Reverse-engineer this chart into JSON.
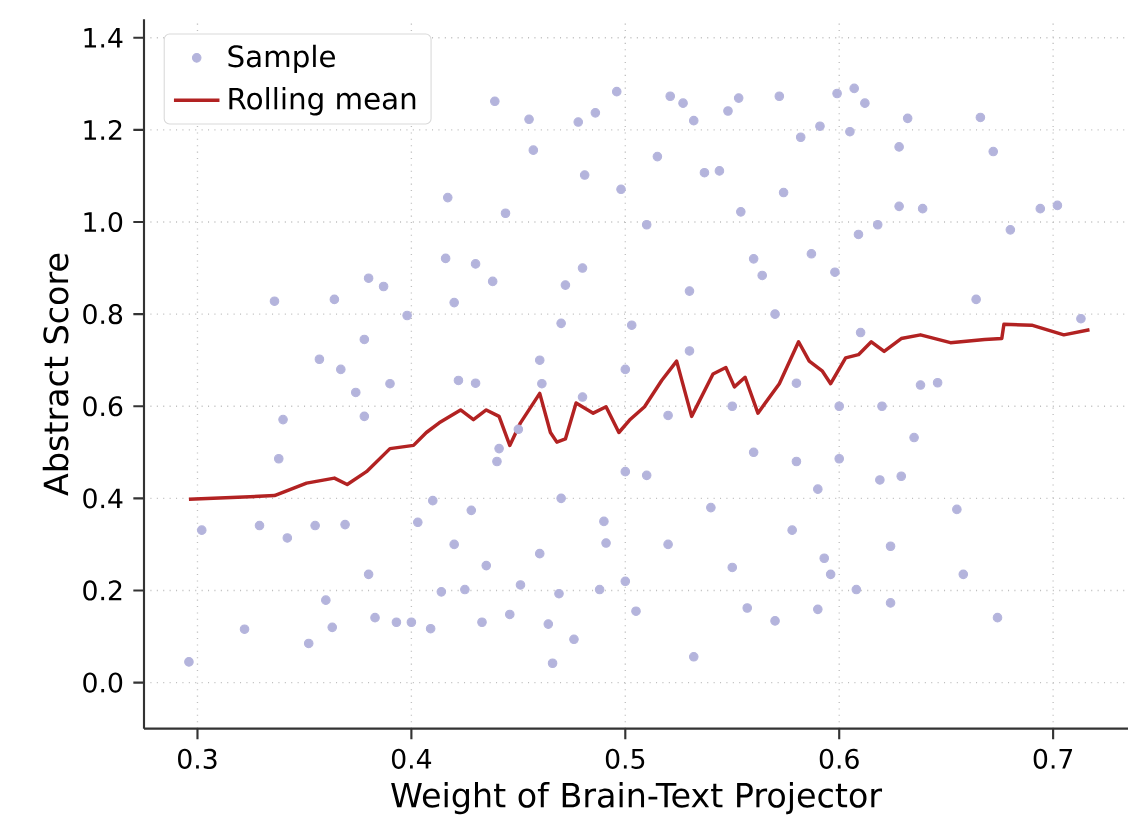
{
  "chart_data": {
    "type": "scatter",
    "xlabel": "Weight of Brain-Text Projector",
    "ylabel": "Abstract Score",
    "xlim": [
      0.275,
      0.735
    ],
    "ylim": [
      -0.1,
      1.44
    ],
    "xticks": [
      0.3,
      0.4,
      0.5,
      0.6,
      0.7
    ],
    "yticks": [
      {
        "value": 0,
        "label": "0.0"
      },
      0.2,
      0.4,
      0.6,
      0.8,
      {
        "value": 1,
        "label": "1.0"
      },
      1.2,
      1.4
    ],
    "grid": true,
    "legend": "top left",
    "series": [
      {
        "name": "Sample",
        "marker": "circle",
        "color": "#b4b4dc",
        "x": [
          0.296,
          0.302,
          0.322,
          0.329,
          0.336,
          0.338,
          0.34,
          0.342,
          0.352,
          0.355,
          0.357,
          0.36,
          0.363,
          0.364,
          0.367,
          0.369,
          0.374,
          0.378,
          0.378,
          0.38,
          0.38,
          0.383,
          0.387,
          0.39,
          0.393,
          0.398,
          0.4,
          0.403,
          0.409,
          0.41,
          0.414,
          0.416,
          0.417,
          0.42,
          0.422,
          0.425,
          0.428,
          0.43,
          0.433,
          0.435,
          0.438,
          0.439,
          0.441,
          0.444,
          0.446,
          0.451,
          0.455,
          0.457,
          0.461,
          0.464,
          0.466,
          0.469,
          0.472,
          0.476,
          0.478,
          0.481,
          0.486,
          0.488,
          0.491,
          0.496,
          0.498,
          0.5,
          0.503,
          0.505,
          0.51,
          0.515,
          0.521,
          0.527,
          0.532,
          0.532,
          0.537,
          0.544,
          0.548,
          0.553,
          0.557,
          0.554,
          0.564,
          0.57,
          0.572,
          0.574,
          0.578,
          0.582,
          0.587,
          0.59,
          0.591,
          0.593,
          0.596,
          0.598,
          0.6,
          0.599,
          0.605,
          0.607,
          0.608,
          0.609,
          0.612,
          0.618,
          0.619,
          0.624,
          0.624,
          0.628,
          0.629,
          0.632,
          0.628,
          0.635,
          0.638,
          0.639,
          0.646,
          0.655,
          0.658,
          0.664,
          0.666,
          0.672,
          0.674,
          0.68,
          0.694,
          0.702,
          0.713,
          0.45,
          0.46,
          0.47,
          0.48,
          0.49,
          0.5,
          0.51,
          0.52,
          0.53,
          0.54,
          0.55,
          0.56,
          0.57,
          0.58,
          0.59,
          0.6,
          0.52,
          0.53,
          0.48,
          0.44,
          0.42,
          0.43,
          0.47,
          0.56,
          0.62,
          0.61,
          0.55,
          0.5,
          0.46,
          0.58
        ],
        "values": [
          0.045,
          0.331,
          0.116,
          0.341,
          0.828,
          0.486,
          0.571,
          0.314,
          0.085,
          0.341,
          0.702,
          0.179,
          0.12,
          0.832,
          0.68,
          0.343,
          0.63,
          0.578,
          0.745,
          0.878,
          0.235,
          0.141,
          0.86,
          0.649,
          0.131,
          0.797,
          0.131,
          0.348,
          0.117,
          0.395,
          0.197,
          0.921,
          1.053,
          0.825,
          0.656,
          0.202,
          0.374,
          0.909,
          0.131,
          0.254,
          0.871,
          1.262,
          0.508,
          1.019,
          0.148,
          0.212,
          1.223,
          1.156,
          0.649,
          0.127,
          0.042,
          0.193,
          0.863,
          0.094,
          1.217,
          1.102,
          1.237,
          0.202,
          0.303,
          1.283,
          1.071,
          0.458,
          0.776,
          0.155,
          0.994,
          1.142,
          1.273,
          1.258,
          0.056,
          1.22,
          1.107,
          1.111,
          1.241,
          1.269,
          0.162,
          1.022,
          0.884,
          0.134,
          1.273,
          1.064,
          0.331,
          1.184,
          0.931,
          0.159,
          1.208,
          0.27,
          0.235,
          0.891,
          0.486,
          1.279,
          1.196,
          1.29,
          0.202,
          0.973,
          1.258,
          0.994,
          0.44,
          0.173,
          0.296,
          1.163,
          0.448,
          1.225,
          1.034,
          0.532,
          0.646,
          1.029,
          0.651,
          0.376,
          0.235,
          0.832,
          1.227,
          1.153,
          0.141,
          0.983,
          1.029,
          1.036,
          0.79,
          0.55,
          0.7,
          0.4,
          0.62,
          0.35,
          0.68,
          0.45,
          0.58,
          0.72,
          0.38,
          0.6,
          0.5,
          0.8,
          0.65,
          0.42,
          0.6,
          0.3,
          0.85,
          0.9,
          0.48,
          0.3,
          0.65,
          0.78,
          0.92,
          0.6,
          0.76,
          0.25,
          0.22,
          0.28,
          0.48
        ]
      },
      {
        "name": "Rolling mean",
        "type": "line",
        "marker": "none",
        "line_style": "solid",
        "color": "#b22222",
        "x": [
          0.296,
          0.336,
          0.351,
          0.364,
          0.37,
          0.379,
          0.39,
          0.401,
          0.407,
          0.413,
          0.423,
          0.429,
          0.435,
          0.441,
          0.446,
          0.451,
          0.46,
          0.465,
          0.468,
          0.472,
          0.477,
          0.485,
          0.491,
          0.497,
          0.502,
          0.509,
          0.517,
          0.524,
          0.531,
          0.541,
          0.547,
          0.551,
          0.556,
          0.562,
          0.572,
          0.581,
          0.586,
          0.592,
          0.596,
          0.603,
          0.609,
          0.615,
          0.621,
          0.629,
          0.638,
          0.652,
          0.668,
          0.676,
          0.677,
          0.69,
          0.705,
          0.717
        ],
        "values": [
          0.398,
          0.406,
          0.433,
          0.444,
          0.43,
          0.458,
          0.508,
          0.515,
          0.543,
          0.564,
          0.592,
          0.571,
          0.592,
          0.578,
          0.515,
          0.564,
          0.628,
          0.543,
          0.522,
          0.529,
          0.607,
          0.585,
          0.599,
          0.543,
          0.57,
          0.599,
          0.656,
          0.698,
          0.578,
          0.67,
          0.684,
          0.642,
          0.663,
          0.585,
          0.649,
          0.74,
          0.698,
          0.677,
          0.649,
          0.705,
          0.712,
          0.74,
          0.719,
          0.747,
          0.755,
          0.738,
          0.745,
          0.747,
          0.778,
          0.776,
          0.755,
          0.766
        ]
      }
    ]
  }
}
